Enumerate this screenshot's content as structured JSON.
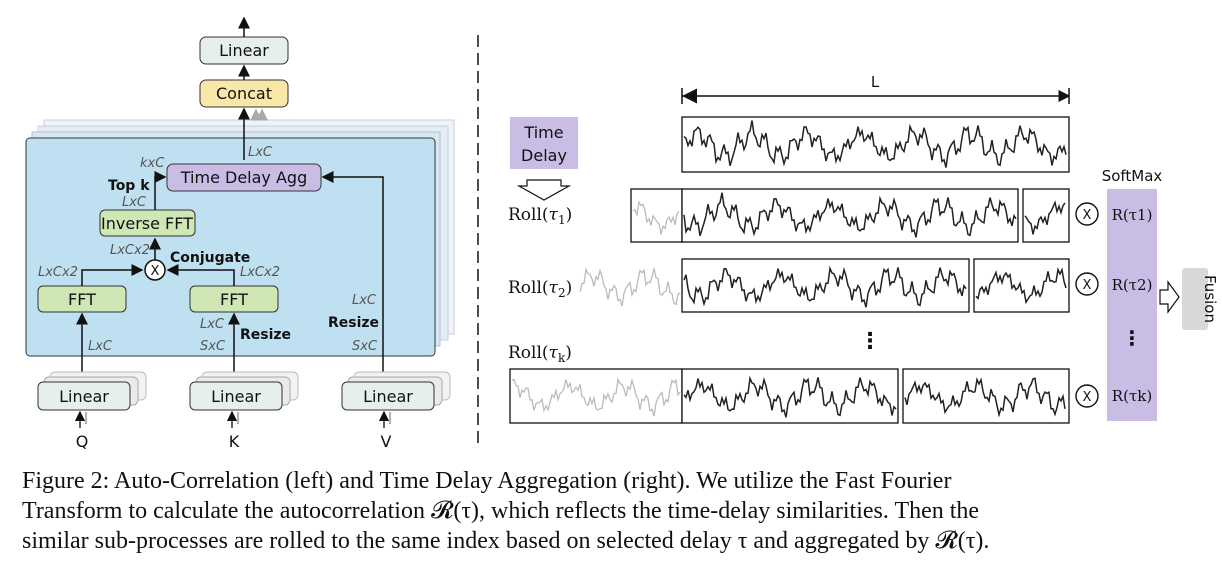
{
  "left": {
    "linear_top": "Linear",
    "concat": "Concat",
    "time_delay_agg": "Time Delay Agg",
    "inverse_fft": "Inverse FFT",
    "fft_left": "FFT",
    "fft_right": "FFT",
    "multiply": "X",
    "conjugate": "Conjugate",
    "top_k": "Top k",
    "resize_k": "Resize",
    "resize_v": "Resize",
    "linear_q": "Linear",
    "linear_k": "Linear",
    "linear_v": "Linear",
    "input_q": "Q",
    "input_k": "K",
    "input_v": "V",
    "dims": {
      "kxc": "kxC",
      "lxc_agg_out": "LxC",
      "lxc_topk": "LxC",
      "lxcx2_ifft": "LxCx2",
      "lxcx2_left": "LxCx2",
      "lxcx2_right": "LxCx2",
      "lxc_q": "LxC",
      "lxc_k": "LxC",
      "sxc_k": "SxC",
      "lxc_v": "LxC",
      "sxc_v": "SxC"
    }
  },
  "right": {
    "time_delay": [
      "Time",
      "Delay"
    ],
    "length_label": "L",
    "softmax": "SoftMax",
    "fusion": "Fusion",
    "rows": [
      {
        "roll": "Roll(",
        "tau": "τ",
        "sub": "1",
        "r_tau": "R(τ1)",
        "x": "X"
      },
      {
        "roll": "Roll(",
        "tau": "τ",
        "sub": "2",
        "r_tau": "R(τ2)",
        "x": "X"
      },
      {
        "roll": "Roll(",
        "tau": "τ",
        "sub": "k",
        "r_tau": "R(τk)",
        "x": "X"
      }
    ],
    "ellipsis": "⋮"
  },
  "caption": {
    "line1": "Figure 2: Auto-Correlation (left) and Time Delay Aggregation (right). We utilize the Fast Fourier",
    "line2": "Transform to calculate the autocorrelation 𝓡(τ), which reflects the time-delay similarities. Then the",
    "line3": "similar sub-processes are rolled to the same index based on selected delay τ and aggregated by 𝓡(τ)."
  },
  "colors": {
    "panel": "#bfe0f1",
    "linear_box": "#e6efe9",
    "concat_box": "#f8e7a9",
    "fft_box": "#cfe6b5",
    "agg_box": "#c9bde6",
    "softmax_bar": "#c9bde6",
    "fusion_box": "#d8d8d8"
  }
}
